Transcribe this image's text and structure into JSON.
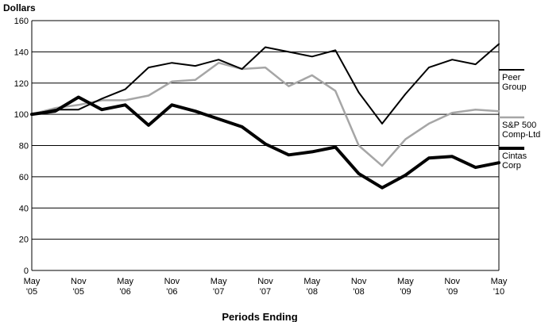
{
  "chart_data": {
    "type": "line",
    "title": "",
    "ylabel": "Dollars",
    "xlabel": "Periods Ending",
    "ylim": [
      0,
      160
    ],
    "yticks": [
      0,
      20,
      40,
      60,
      80,
      100,
      120,
      140,
      160
    ],
    "grid": "horizontal",
    "legend_position": "right",
    "x_tick_labels": [
      [
        "May",
        "'05"
      ],
      [
        "Nov",
        "'05"
      ],
      [
        "May",
        "'06"
      ],
      [
        "Nov",
        "'06"
      ],
      [
        "May",
        "'07"
      ],
      [
        "Nov",
        "'07"
      ],
      [
        "May",
        "'08"
      ],
      [
        "Nov",
        "'08"
      ],
      [
        "May",
        "'09"
      ],
      [
        "Nov",
        "'09"
      ],
      [
        "May",
        "'10"
      ]
    ],
    "x": [
      "May '05",
      "Aug '05",
      "Nov '05",
      "Feb '06",
      "May '06",
      "Aug '06",
      "Nov '06",
      "Feb '07",
      "May '07",
      "Aug '07",
      "Nov '07",
      "Feb '08",
      "May '08",
      "Aug '08",
      "Nov '08",
      "Feb '09",
      "May '09",
      "Aug '09",
      "Nov '09",
      "Feb '10",
      "May '10"
    ],
    "series": [
      {
        "name": [
          "Peer",
          "Group"
        ],
        "color": "#000000",
        "width": 2,
        "values": [
          100,
          103,
          103,
          110,
          116,
          130,
          133,
          131,
          135,
          129,
          143,
          140,
          137,
          141,
          114,
          94,
          113,
          130,
          135,
          132,
          145
        ]
      },
      {
        "name": [
          "S&P 500",
          "Comp-Ltd"
        ],
        "color": "#a6a6a6",
        "width": 2.5,
        "values": [
          100,
          104,
          106,
          109,
          109,
          112,
          121,
          122,
          133,
          129,
          130,
          118,
          125,
          115,
          80,
          67,
          84,
          94,
          101,
          103,
          102
        ]
      },
      {
        "name": [
          "Cintas",
          "Corp"
        ],
        "color": "#000000",
        "width": 4,
        "values": [
          100,
          102,
          111,
          103,
          106,
          93,
          106,
          102,
          97,
          92,
          81,
          74,
          76,
          79,
          62,
          53,
          61,
          72,
          73,
          66,
          69
        ]
      }
    ]
  }
}
